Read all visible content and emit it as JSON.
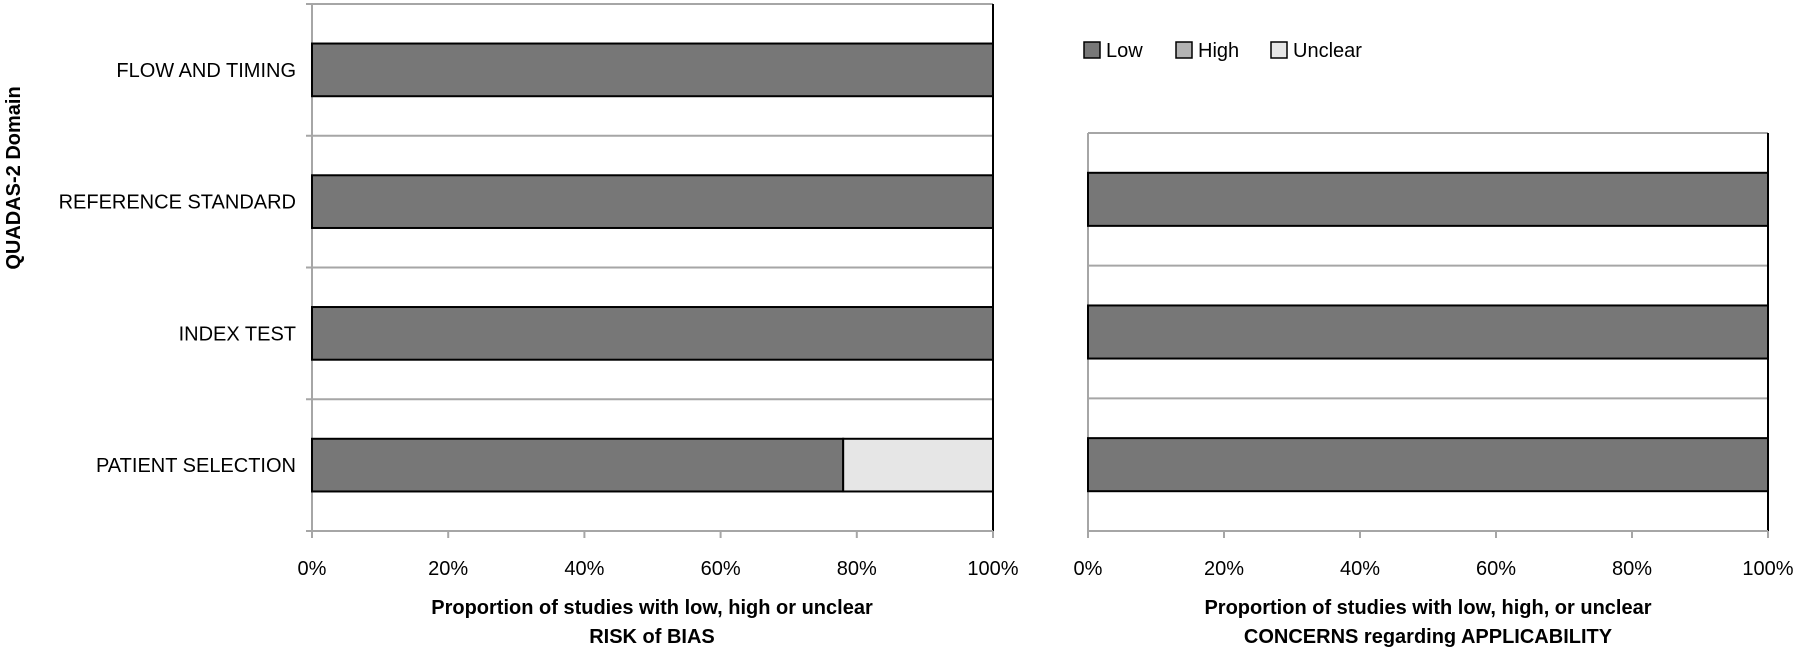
{
  "y_axis_title": "QUADAS-2 Domain",
  "legend": [
    {
      "label": "Low",
      "color": "#777777"
    },
    {
      "label": "High",
      "color": "#b3b3b3"
    },
    {
      "label": "Unclear",
      "color": "#e6e6e6"
    }
  ],
  "chart_data": [
    {
      "type": "bar",
      "orientation": "horizontal",
      "stacked": true,
      "categories": [
        "FLOW AND TIMING",
        "REFERENCE STANDARD",
        "INDEX TEST",
        "PATIENT SELECTION"
      ],
      "series": [
        {
          "name": "Low",
          "values": [
            100,
            100,
            100,
            78
          ],
          "color": "#777777"
        },
        {
          "name": "High",
          "values": [
            0,
            0,
            0,
            0
          ],
          "color": "#b3b3b3"
        },
        {
          "name": "Unclear",
          "values": [
            0,
            0,
            0,
            22
          ],
          "color": "#e6e6e6"
        }
      ],
      "xlim": [
        0,
        100
      ],
      "x_ticks": [
        "0%",
        "20%",
        "40%",
        "60%",
        "80%",
        "100%"
      ],
      "xlabel": [
        "Proportion of studies with low, high or unclear",
        "RISK of BIAS"
      ],
      "ylabel": "QUADAS-2 Domain",
      "grid": true
    },
    {
      "type": "bar",
      "orientation": "horizontal",
      "stacked": true,
      "categories": [
        "REFERENCE STANDARD",
        "INDEX TEST",
        "PATIENT SELECTION"
      ],
      "series": [
        {
          "name": "Low",
          "values": [
            100,
            100,
            100
          ],
          "color": "#777777"
        },
        {
          "name": "High",
          "values": [
            0,
            0,
            0
          ],
          "color": "#b3b3b3"
        },
        {
          "name": "Unclear",
          "values": [
            0,
            0,
            0
          ],
          "color": "#e6e6e6"
        }
      ],
      "xlim": [
        0,
        100
      ],
      "x_ticks": [
        "0%",
        "20%",
        "40%",
        "60%",
        "80%",
        "100%"
      ],
      "xlabel": [
        "Proportion of studies with low, high, or unclear",
        "CONCERNS regarding APPLICABILITY"
      ],
      "grid": true
    }
  ]
}
